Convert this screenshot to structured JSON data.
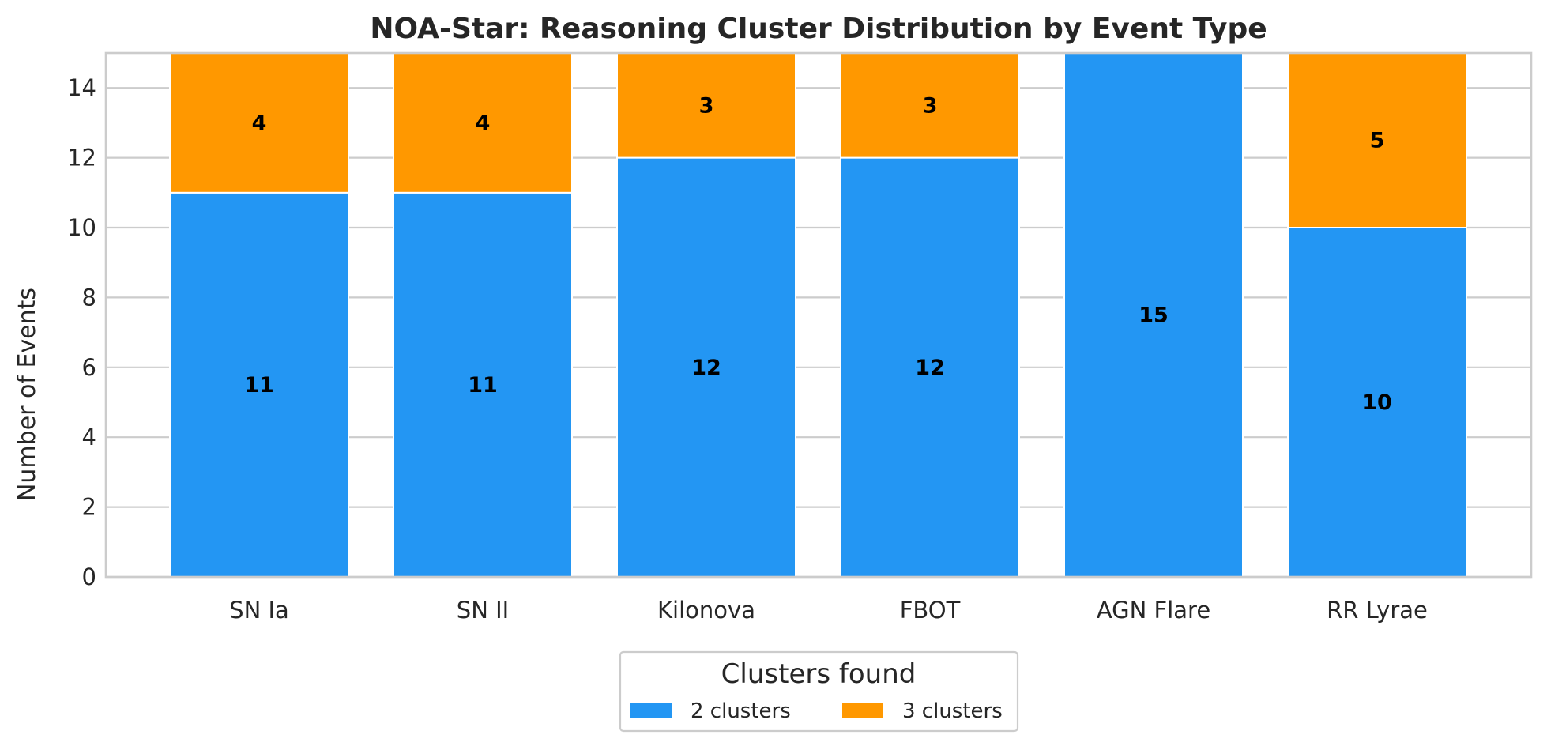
{
  "chart_data": {
    "type": "bar",
    "stacked": true,
    "title": "NOA-Star: Reasoning Cluster Distribution by Event Type",
    "xlabel": "",
    "ylabel": "Number of Events",
    "ylim": [
      0,
      15
    ],
    "yticks": [
      0,
      2,
      4,
      6,
      8,
      10,
      12,
      14
    ],
    "grid": true,
    "legend_placement": "bottom-center",
    "legend_title": "Clusters found",
    "categories": [
      "SN Ia",
      "SN II",
      "Kilonova",
      "FBOT",
      "AGN Flare",
      "RR Lyrae"
    ],
    "series": [
      {
        "name": "2 clusters",
        "color": "#2396f3",
        "values": [
          11,
          11,
          12,
          12,
          15,
          10
        ]
      },
      {
        "name": "3 clusters",
        "color": "#ff9800",
        "values": [
          4,
          4,
          3,
          3,
          0,
          5
        ]
      }
    ]
  }
}
